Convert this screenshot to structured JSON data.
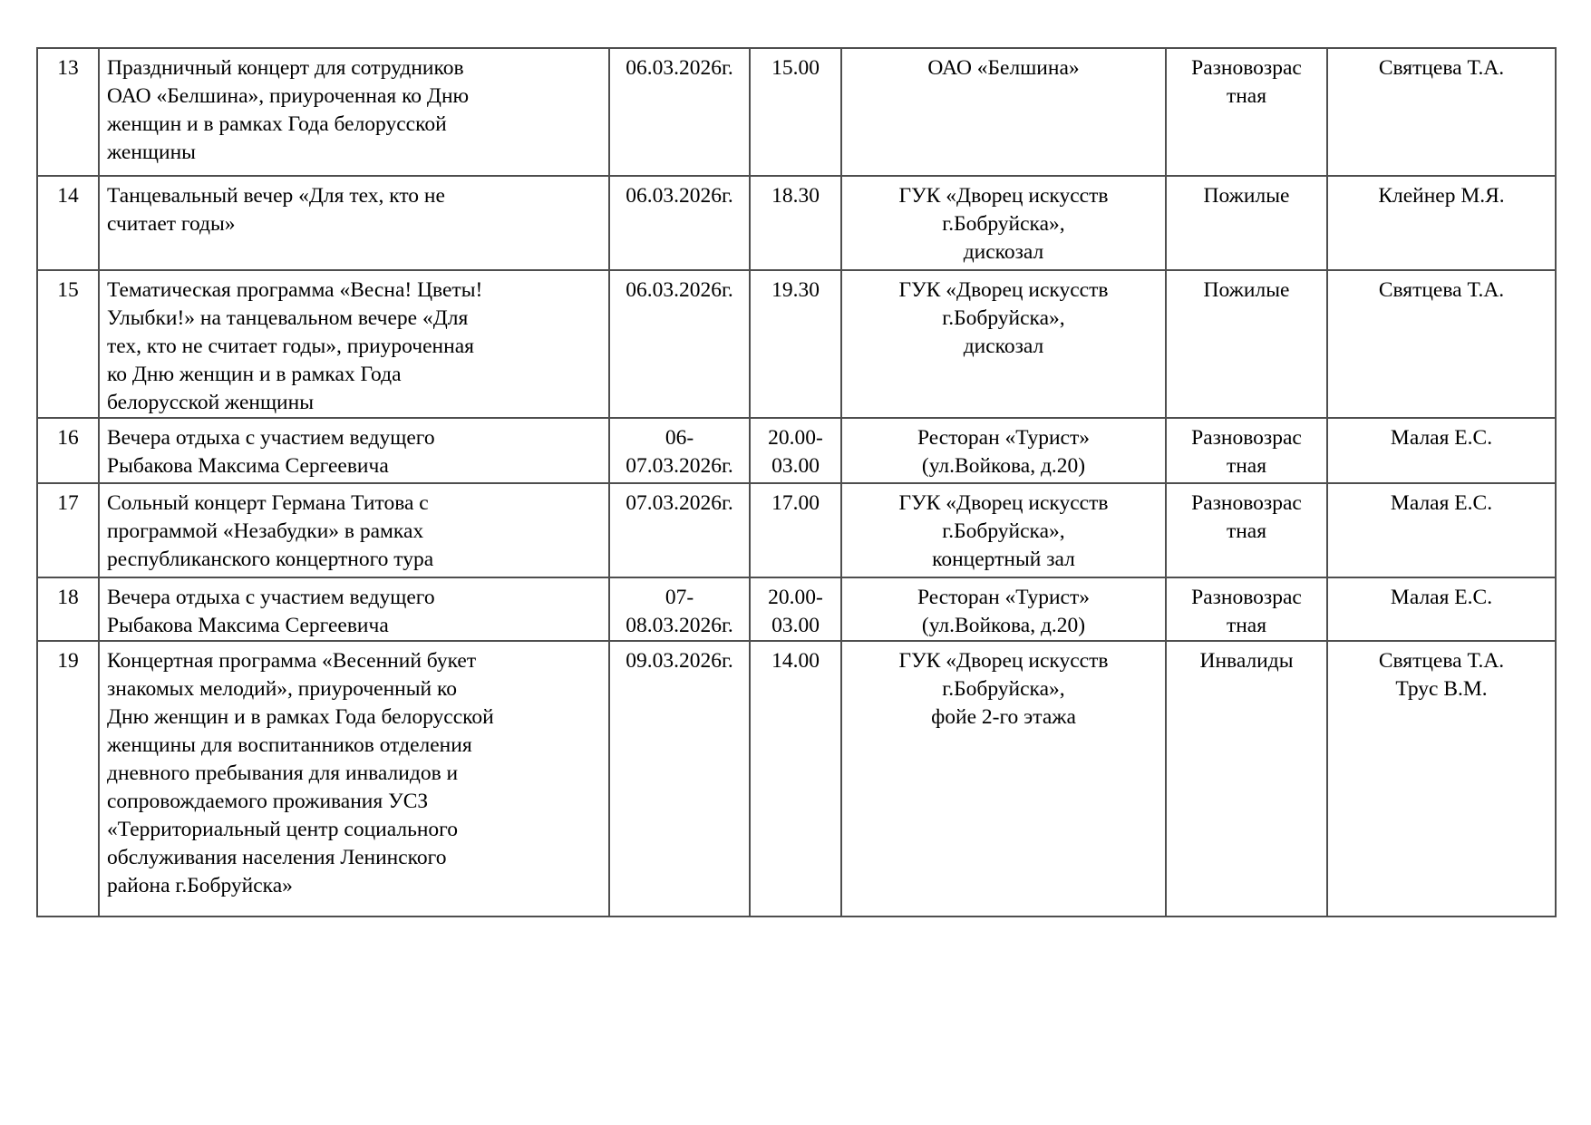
{
  "document": {
    "language": "ru",
    "table": {
      "border_color": "#4e4e4e",
      "text_color": "#000000",
      "rows": [
        {
          "num": "13",
          "event": "Праздничный концерт для сотрудников\nОАО «Белшина», приуроченная ко Дню\nженщин и в рамках Года белорусской\nженщины",
          "date": "06.03.2026г.",
          "time": "15.00",
          "venue": "ОАО «Белшина»",
          "audience": "Разновозрас\nтная",
          "responsible": "Святцева Т.А."
        },
        {
          "num": "14",
          "event": "Танцевальный вечер «Для тех, кто не\nсчитает годы»",
          "date": "06.03.2026г.",
          "time": "18.30",
          "venue": "ГУК «Дворец искусств\nг.Бобруйска»,\nдискозал",
          "audience": "Пожилые",
          "responsible": "Клейнер М.Я."
        },
        {
          "num": "15",
          "event": "Тематическая программа «Весна! Цветы!\nУлыбки!» на танцевальном вечере «Для\nтех, кто не считает годы», приуроченная\nко Дню женщин и в рамках Года\nбелорусской женщины",
          "date": "06.03.2026г.",
          "time": "19.30",
          "venue": "ГУК «Дворец искусств\nг.Бобруйска»,\nдискозал",
          "audience": "Пожилые",
          "responsible": "Святцева Т.А."
        },
        {
          "num": "16",
          "event": "Вечера отдыха с участием ведущего\nРыбакова Максима Сергеевича",
          "date": "06-\n07.03.2026г.",
          "time": "20.00-\n03.00",
          "venue": "Ресторан «Турист»\n(ул.Войкова, д.20)",
          "audience": "Разновозрас\nтная",
          "responsible": "Малая Е.С."
        },
        {
          "num": "17",
          "event": "Сольный концерт Германа Титова с\nпрограммой «Незабудки» в рамках\nреспубликанского концертного тура",
          "date": "07.03.2026г.",
          "time": "17.00",
          "venue": "ГУК «Дворец искусств\nг.Бобруйска»,\nконцертный зал",
          "audience": "Разновозрас\nтная",
          "responsible": "Малая Е.С."
        },
        {
          "num": "18",
          "event": "Вечера отдыха с участием ведущего\nРыбакова Максима Сергеевича",
          "date": "07-\n08.03.2026г.",
          "time": "20.00-\n03.00",
          "venue": "Ресторан «Турист»\n(ул.Войкова, д.20)",
          "audience": "Разновозрас\nтная",
          "responsible": "Малая Е.С."
        },
        {
          "num": "19",
          "event": "Концертная программа «Весенний букет\nзнакомых мелодий», приуроченный ко\nДню женщин и в рамках Года белорусской\nженщины для воспитанников отделения\nдневного пребывания для инвалидов и\nсопровождаемого проживания УСЗ\n«Территориальный центр социального\nобслуживания населения Ленинского\nрайона г.Бобруйска»",
          "date": "09.03.2026г.",
          "time": "14.00",
          "venue": "ГУК «Дворец искусств\nг.Бобруйска»,\nфойе 2-го этажа",
          "audience": "Инвалиды",
          "responsible": "Святцева Т.А.\nТрус В.М."
        }
      ]
    }
  }
}
